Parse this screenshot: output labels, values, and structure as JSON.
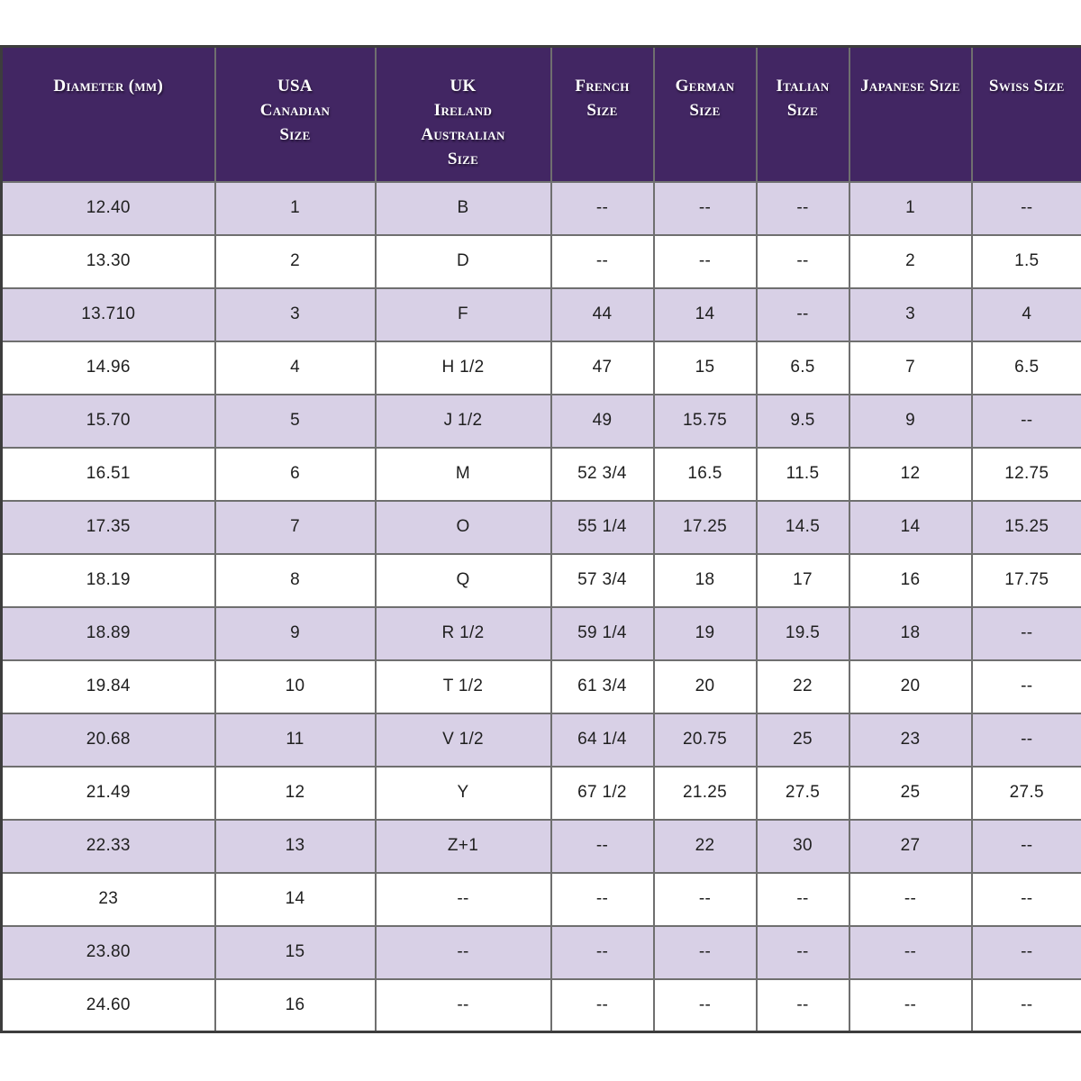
{
  "colors": {
    "header_bg": "#422663",
    "header_text": "#ffffff",
    "row_alt_bg": "#d8d0e6",
    "row_bg": "#ffffff",
    "cell_text": "#1f1f1f",
    "border_inner": "#6f6f6f",
    "border_outer": "#3d3d3d"
  },
  "chart_data": {
    "type": "table",
    "columns": [
      {
        "key": "diameter",
        "label": "Diameter (mm)"
      },
      {
        "key": "usa-canadian",
        "label": "USA\nCanadian\nSize"
      },
      {
        "key": "uk-ireland-australian",
        "label": "UK\nIreland\nAustralian\nSize"
      },
      {
        "key": "french",
        "label": "French\nSize"
      },
      {
        "key": "german",
        "label": "German\nSize"
      },
      {
        "key": "italian",
        "label": "Italian\nSize"
      },
      {
        "key": "japanese",
        "label": "Japanese Size"
      },
      {
        "key": "swiss",
        "label": "Swiss Size"
      }
    ],
    "rows": [
      [
        "12.40",
        "1",
        "B",
        "--",
        "--",
        "--",
        "1",
        "--"
      ],
      [
        "13.30",
        "2",
        "D",
        "--",
        "--",
        "--",
        "2",
        "1.5"
      ],
      [
        "13.710",
        "3",
        "F",
        "44",
        "14",
        "--",
        "3",
        "4"
      ],
      [
        "14.96",
        "4",
        "H 1/2",
        "47",
        "15",
        "6.5",
        "7",
        "6.5"
      ],
      [
        "15.70",
        "5",
        "J 1/2",
        "49",
        "15.75",
        "9.5",
        "9",
        "--"
      ],
      [
        "16.51",
        "6",
        "M",
        "52 3/4",
        "16.5",
        "11.5",
        "12",
        "12.75"
      ],
      [
        "17.35",
        "7",
        "O",
        "55 1/4",
        "17.25",
        "14.5",
        "14",
        "15.25"
      ],
      [
        "18.19",
        "8",
        "Q",
        "57 3/4",
        "18",
        "17",
        "16",
        "17.75"
      ],
      [
        "18.89",
        "9",
        "R 1/2",
        "59 1/4",
        "19",
        "19.5",
        "18",
        "--"
      ],
      [
        "19.84",
        "10",
        "T 1/2",
        "61 3/4",
        "20",
        "22",
        "20",
        "--"
      ],
      [
        "20.68",
        "11",
        "V 1/2",
        "64 1/4",
        "20.75",
        "25",
        "23",
        "--"
      ],
      [
        "21.49",
        "12",
        "Y",
        "67 1/2",
        "21.25",
        "27.5",
        "25",
        "27.5"
      ],
      [
        "22.33",
        "13",
        "Z+1",
        "--",
        "22",
        "30",
        "27",
        "--"
      ],
      [
        "23",
        "14",
        "--",
        "--",
        "--",
        "--",
        "--",
        "--"
      ],
      [
        "23.80",
        "15",
        "--",
        "--",
        "--",
        "--",
        "--",
        "--"
      ],
      [
        "24.60",
        "16",
        "--",
        "--",
        "--",
        "--",
        "--",
        "--"
      ]
    ]
  }
}
